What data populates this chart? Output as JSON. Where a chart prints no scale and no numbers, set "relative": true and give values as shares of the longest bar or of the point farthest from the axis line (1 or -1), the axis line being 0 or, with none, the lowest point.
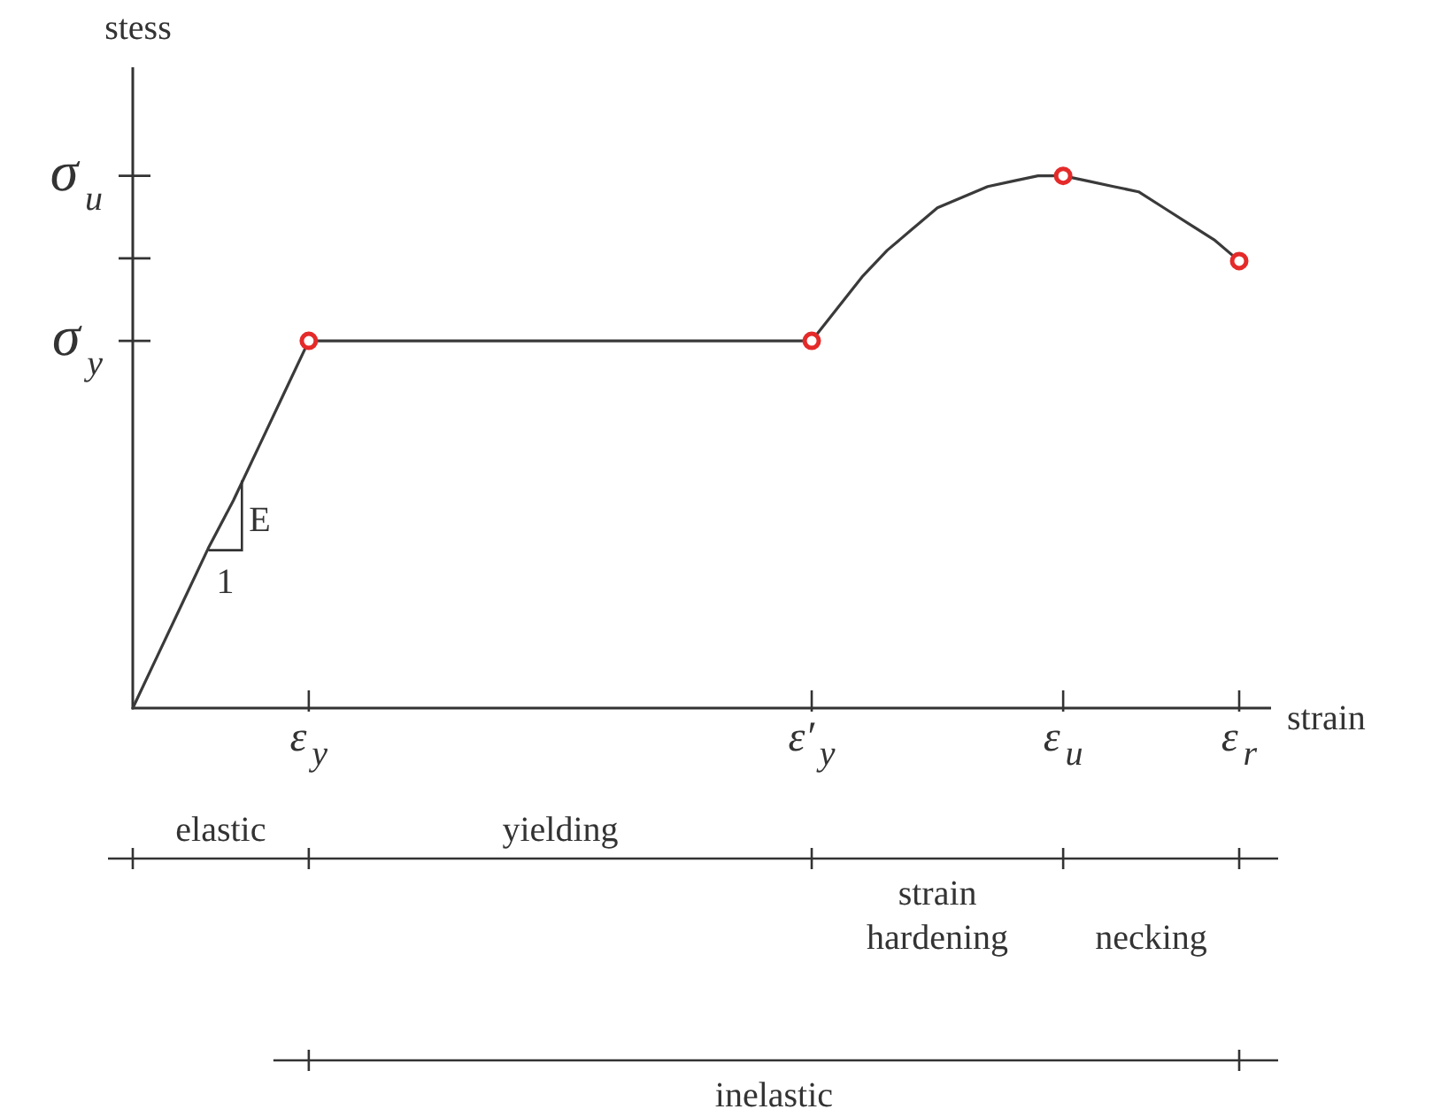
{
  "chart_data": {
    "type": "line",
    "relative": true,
    "xlabel": "strain",
    "ylabel": "stess",
    "categories": [
      null,
      null,
      null,
      null,
      null,
      null,
      null,
      "ε$_{y}$",
      null,
      null,
      null,
      null,
      null,
      null,
      null,
      null,
      null,
      null,
      null,
      null,
      null,
      null,
      null,
      null,
      null,
      null,
      null,
      "ε′$_{y}$",
      null,
      null,
      null,
      null,
      null,
      null,
      null,
      null,
      null,
      "ε$_{u}$",
      null,
      null,
      null,
      null,
      null,
      null,
      "ε$_{r}$"
    ],
    "series": [
      {
        "color": "#3a3a3a",
        "values": [
          0,
          0.1,
          0.2,
          0.3,
          0.39,
          0.49,
          0.59,
          0.69,
          0.69,
          0.69,
          0.69,
          0.69,
          0.69,
          0.69,
          0.69,
          0.69,
          0.69,
          0.69,
          0.69,
          0.69,
          0.69,
          0.69,
          0.69,
          0.69,
          0.69,
          0.69,
          0.69,
          0.69,
          0.75,
          0.81,
          0.86,
          0.9,
          0.94,
          0.96,
          0.98,
          0.99,
          1.0,
          1.0,
          0.99,
          0.98,
          0.97,
          0.94,
          0.91,
          0.88,
          0.84
        ]
      },
      {
        "type": "scatter",
        "color": "#e52a2a",
        "marker": "circle",
        "values": [
          null,
          null,
          null,
          null,
          null,
          null,
          null,
          0.69,
          null,
          null,
          null,
          null,
          null,
          null,
          null,
          null,
          null,
          null,
          null,
          null,
          null,
          null,
          null,
          null,
          null,
          null,
          null,
          0.69,
          null,
          null,
          null,
          null,
          null,
          null,
          null,
          null,
          null,
          1.0,
          null,
          null,
          null,
          null,
          null,
          null,
          0.84
        ]
      }
    ],
    "annotations": [
      "σ$_{y}$",
      "σ$_{u}$",
      "E",
      "1",
      "elastic",
      "yielding",
      "strain hardening",
      "necking",
      "inelastic"
    ]
  }
}
